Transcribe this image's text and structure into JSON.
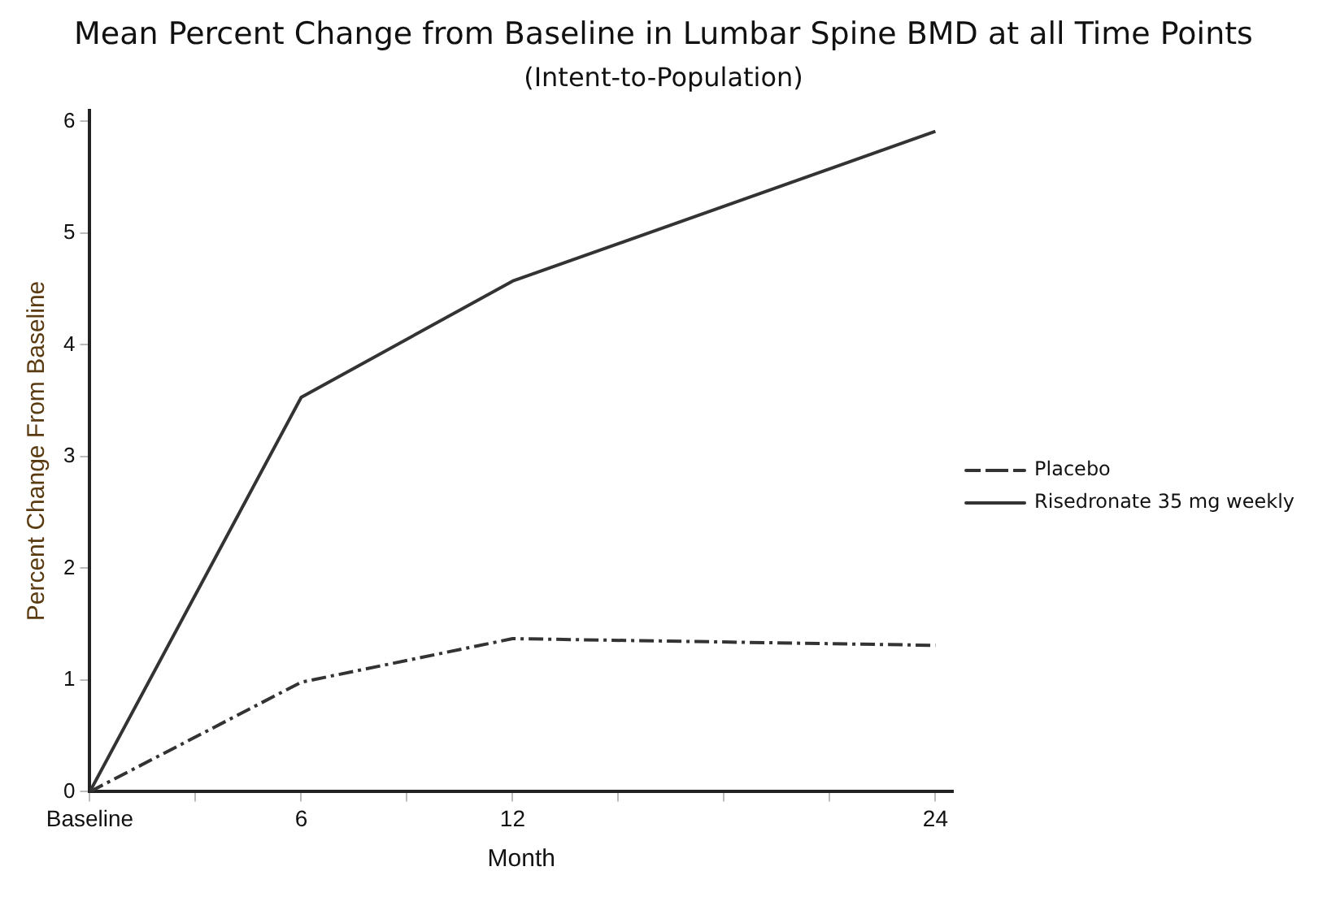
{
  "chart_data": {
    "type": "line",
    "title": "Mean Percent Change from Baseline in Lumbar Spine BMD at all Time Points",
    "subtitle": "(Intent-to-Population)",
    "xlabel": "Month",
    "ylabel": "Percent Change From Baseline",
    "x": [
      0,
      6,
      12,
      24
    ],
    "series": [
      {
        "name": "Placebo",
        "color": "#333333",
        "values": [
          0,
          0.98,
          1.37,
          1.31
        ],
        "line_style": "dashed"
      },
      {
        "name": "Risedronate 35 mg weekly",
        "color": "#333333",
        "values": [
          0,
          3.53,
          4.57,
          5.91
        ],
        "line_style": "solid"
      }
    ],
    "xlim": [
      0,
      24.5
    ],
    "xticks": [
      {
        "value": 0,
        "label": "Baseline"
      },
      {
        "value": 3,
        "label": null
      },
      6,
      {
        "value": 9,
        "label": null
      },
      12,
      {
        "value": 15,
        "label": null
      },
      {
        "value": 18,
        "label": null
      },
      {
        "value": 21,
        "label": null
      },
      24
    ],
    "ylim": [
      0,
      6.1
    ],
    "yticks": [
      0,
      1,
      2,
      3,
      4,
      5,
      6
    ],
    "grid": false,
    "legend": "right",
    "marker": "none"
  }
}
